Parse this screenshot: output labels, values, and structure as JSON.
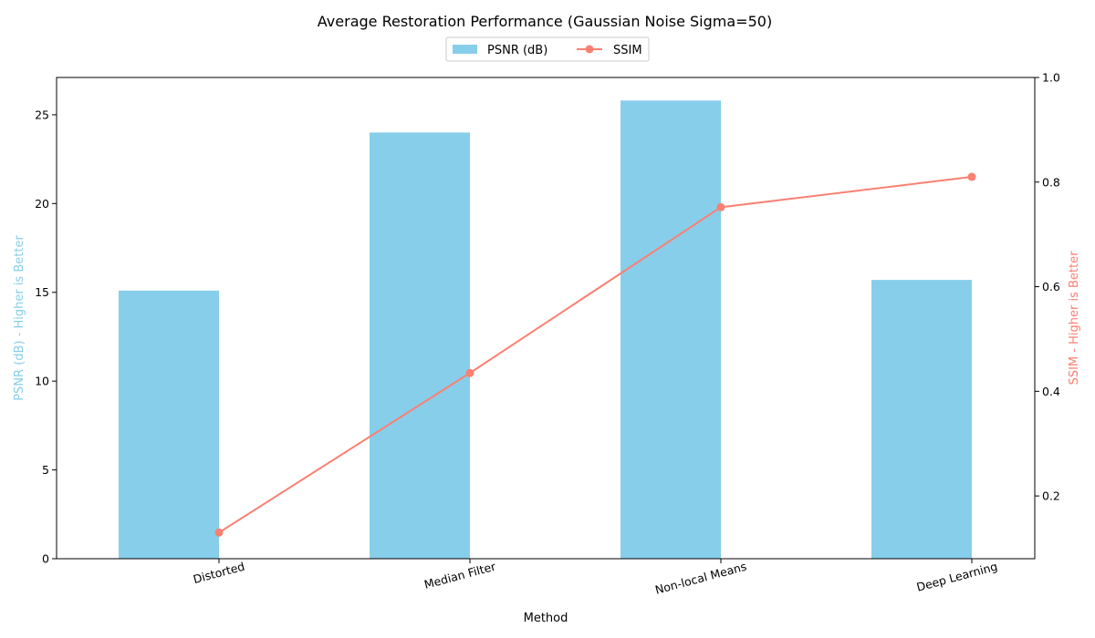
{
  "chart_data": {
    "type": "bar",
    "title": "Average Restoration Performance (Gaussian Noise Sigma=50)",
    "xlabel": "Method",
    "ylabel_left": "PSNR (dB) - Higher is Better",
    "ylabel_right": "SSIM - Higher is Better",
    "categories": [
      "Distorted",
      "Median Filter",
      "Non-local Means",
      "Deep Learning"
    ],
    "ylim_left": [
      0,
      27.1
    ],
    "ylim_right": [
      0.08,
      1.0
    ],
    "yticks_left": [
      0,
      5,
      10,
      15,
      20,
      25
    ],
    "yticks_right": [
      0.2,
      0.4,
      0.6,
      0.8,
      1.0
    ],
    "series": [
      {
        "name": "PSNR (dB)",
        "type": "bar",
        "axis": "left",
        "values": [
          15.1,
          24.0,
          25.8,
          15.7
        ]
      },
      {
        "name": "SSIM",
        "type": "line",
        "axis": "right",
        "values": [
          0.13,
          0.435,
          0.752,
          0.81
        ]
      }
    ],
    "legend_position": "top-center",
    "grid": false
  },
  "colors": {
    "bar": "#87ceeb",
    "line": "#fa8072",
    "axis": "#000000"
  }
}
